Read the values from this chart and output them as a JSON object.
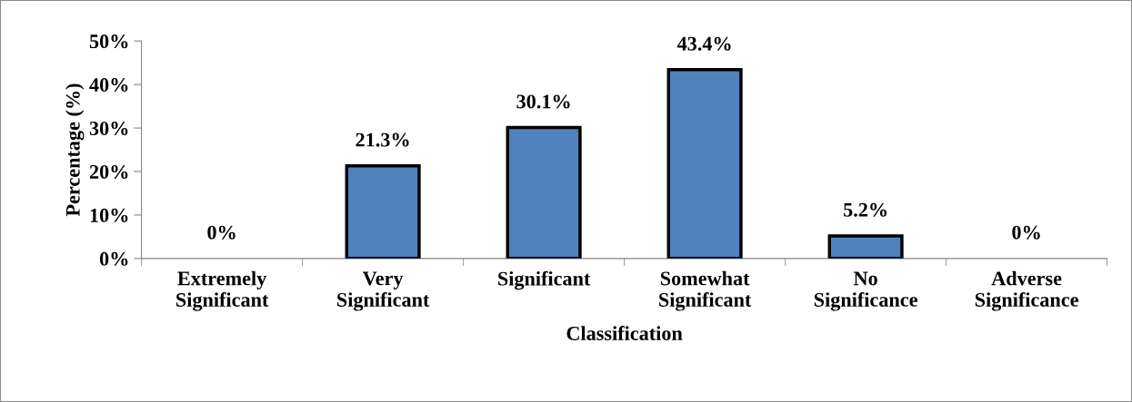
{
  "chart_data": {
    "type": "bar",
    "xlabel": "Classification",
    "ylabel": "Percentage (%)",
    "categories": [
      "Extremely\nSignificant",
      "Very\nSignificant",
      "Significant",
      "Somewhat\nSignificant",
      "No\nSignificance",
      "Adverse\nSignificance"
    ],
    "values": [
      0,
      21.3,
      30.1,
      43.4,
      5.2,
      0
    ],
    "value_labels": [
      "0%",
      "21.3%",
      "30.1%",
      "43.4%",
      "5.2%",
      "0%"
    ],
    "color": "#4f81bd",
    "ylim": [
      0,
      50
    ],
    "yticks": [
      {
        "value": 0,
        "label": "0%"
      },
      {
        "value": 10,
        "label": "10%"
      },
      {
        "value": 20,
        "label": "20%"
      },
      {
        "value": 30,
        "label": "30%"
      },
      {
        "value": 40,
        "label": "40%"
      },
      {
        "value": 50,
        "label": "50%"
      }
    ],
    "grid": false,
    "legend": false
  }
}
